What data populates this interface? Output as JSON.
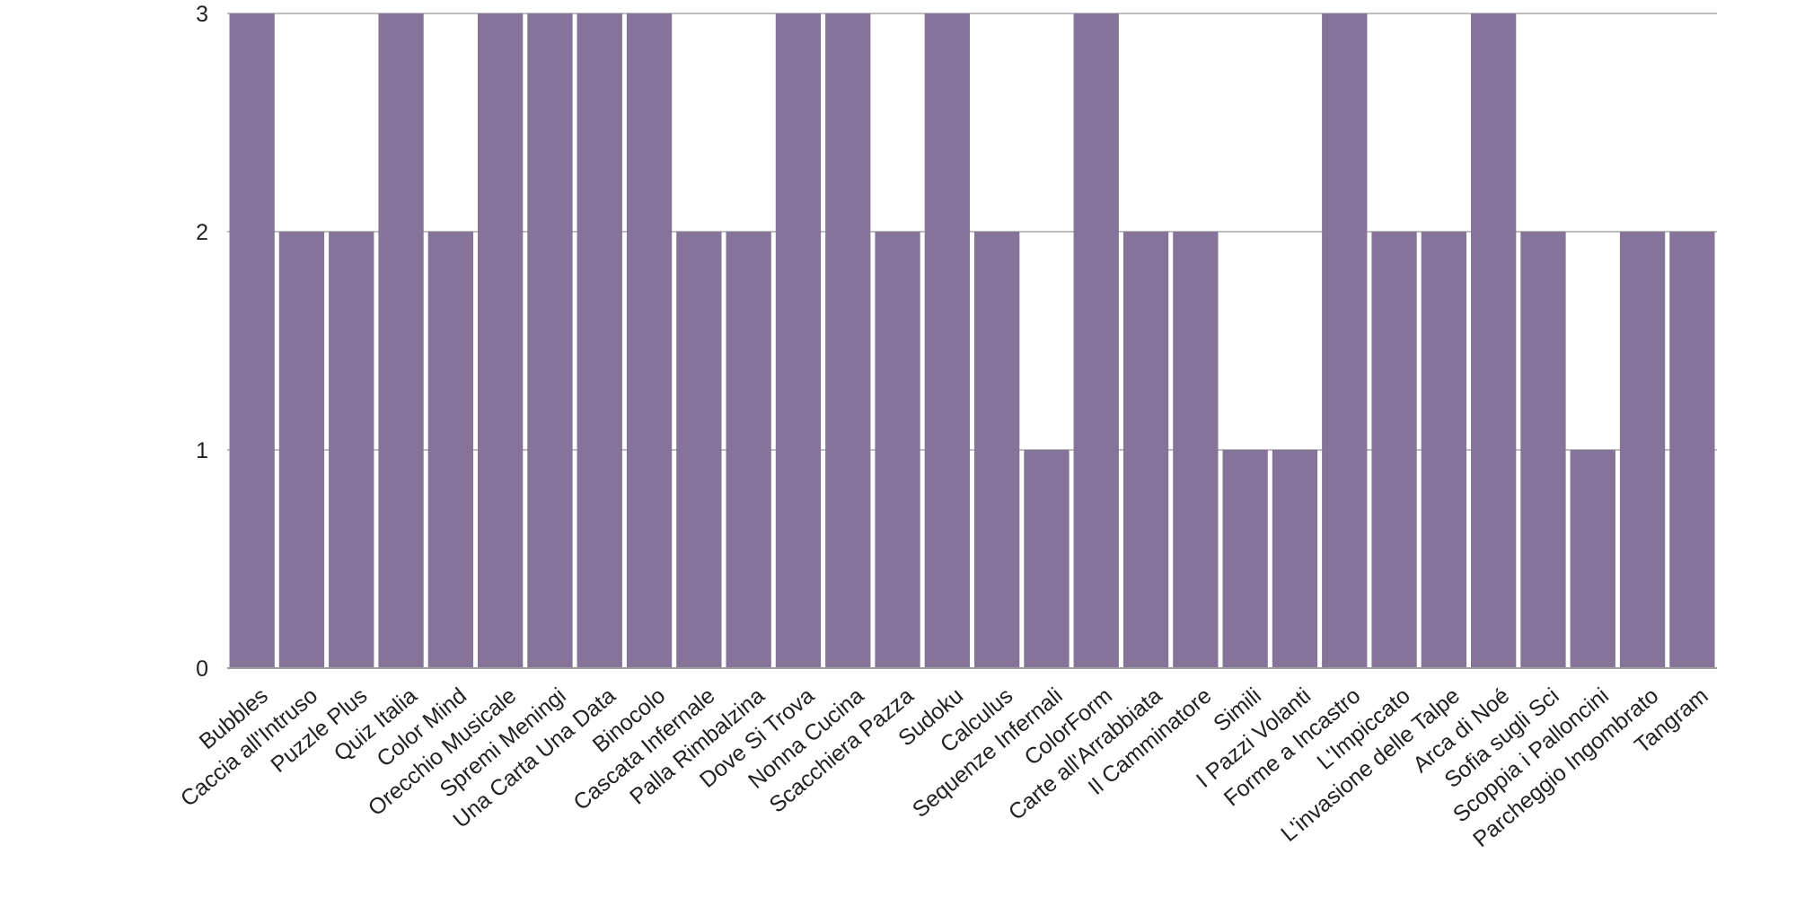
{
  "chart_data": {
    "type": "bar",
    "title": "",
    "xlabel": "",
    "ylabel": "",
    "ylim": [
      0,
      3
    ],
    "yticks": [
      0,
      1,
      2,
      3
    ],
    "grid": true,
    "legend": "none",
    "bar_color": "#85739A",
    "grid_color": "#BDBDBD",
    "categories": [
      "Bubbles",
      "Caccia all'Intruso",
      "Puzzle Plus",
      "Quiz Italia",
      "Color Mind",
      "Orecchio Musicale",
      "Spremi Meningi",
      "Una Carta Una Data",
      "Binocolo",
      "Cascata Infernale",
      "Palla Rimbalzina",
      "Dove Si Trova",
      "Nonna Cucina",
      "Scacchiera Pazza",
      "Sudoku",
      "Calculus",
      "Sequenze Infernali",
      "ColorForm",
      "Carte all'Arrabbiata",
      "Il Camminatore",
      "Simili",
      "I Pazzi Volanti",
      "Forme a Incastro",
      "L'Impiccato",
      "L'invasione delle Talpe",
      "Arca di Noé",
      "Sofia sugli Sci",
      "Scoppia i Palloncini",
      "Parcheggio Ingombrato",
      "Tangram"
    ],
    "values": [
      3,
      2,
      2,
      3,
      2,
      3,
      3,
      3,
      3,
      2,
      2,
      3,
      3,
      2,
      3,
      2,
      1,
      3,
      2,
      2,
      1,
      1,
      3,
      2,
      2,
      3,
      2,
      1,
      2,
      2
    ]
  }
}
